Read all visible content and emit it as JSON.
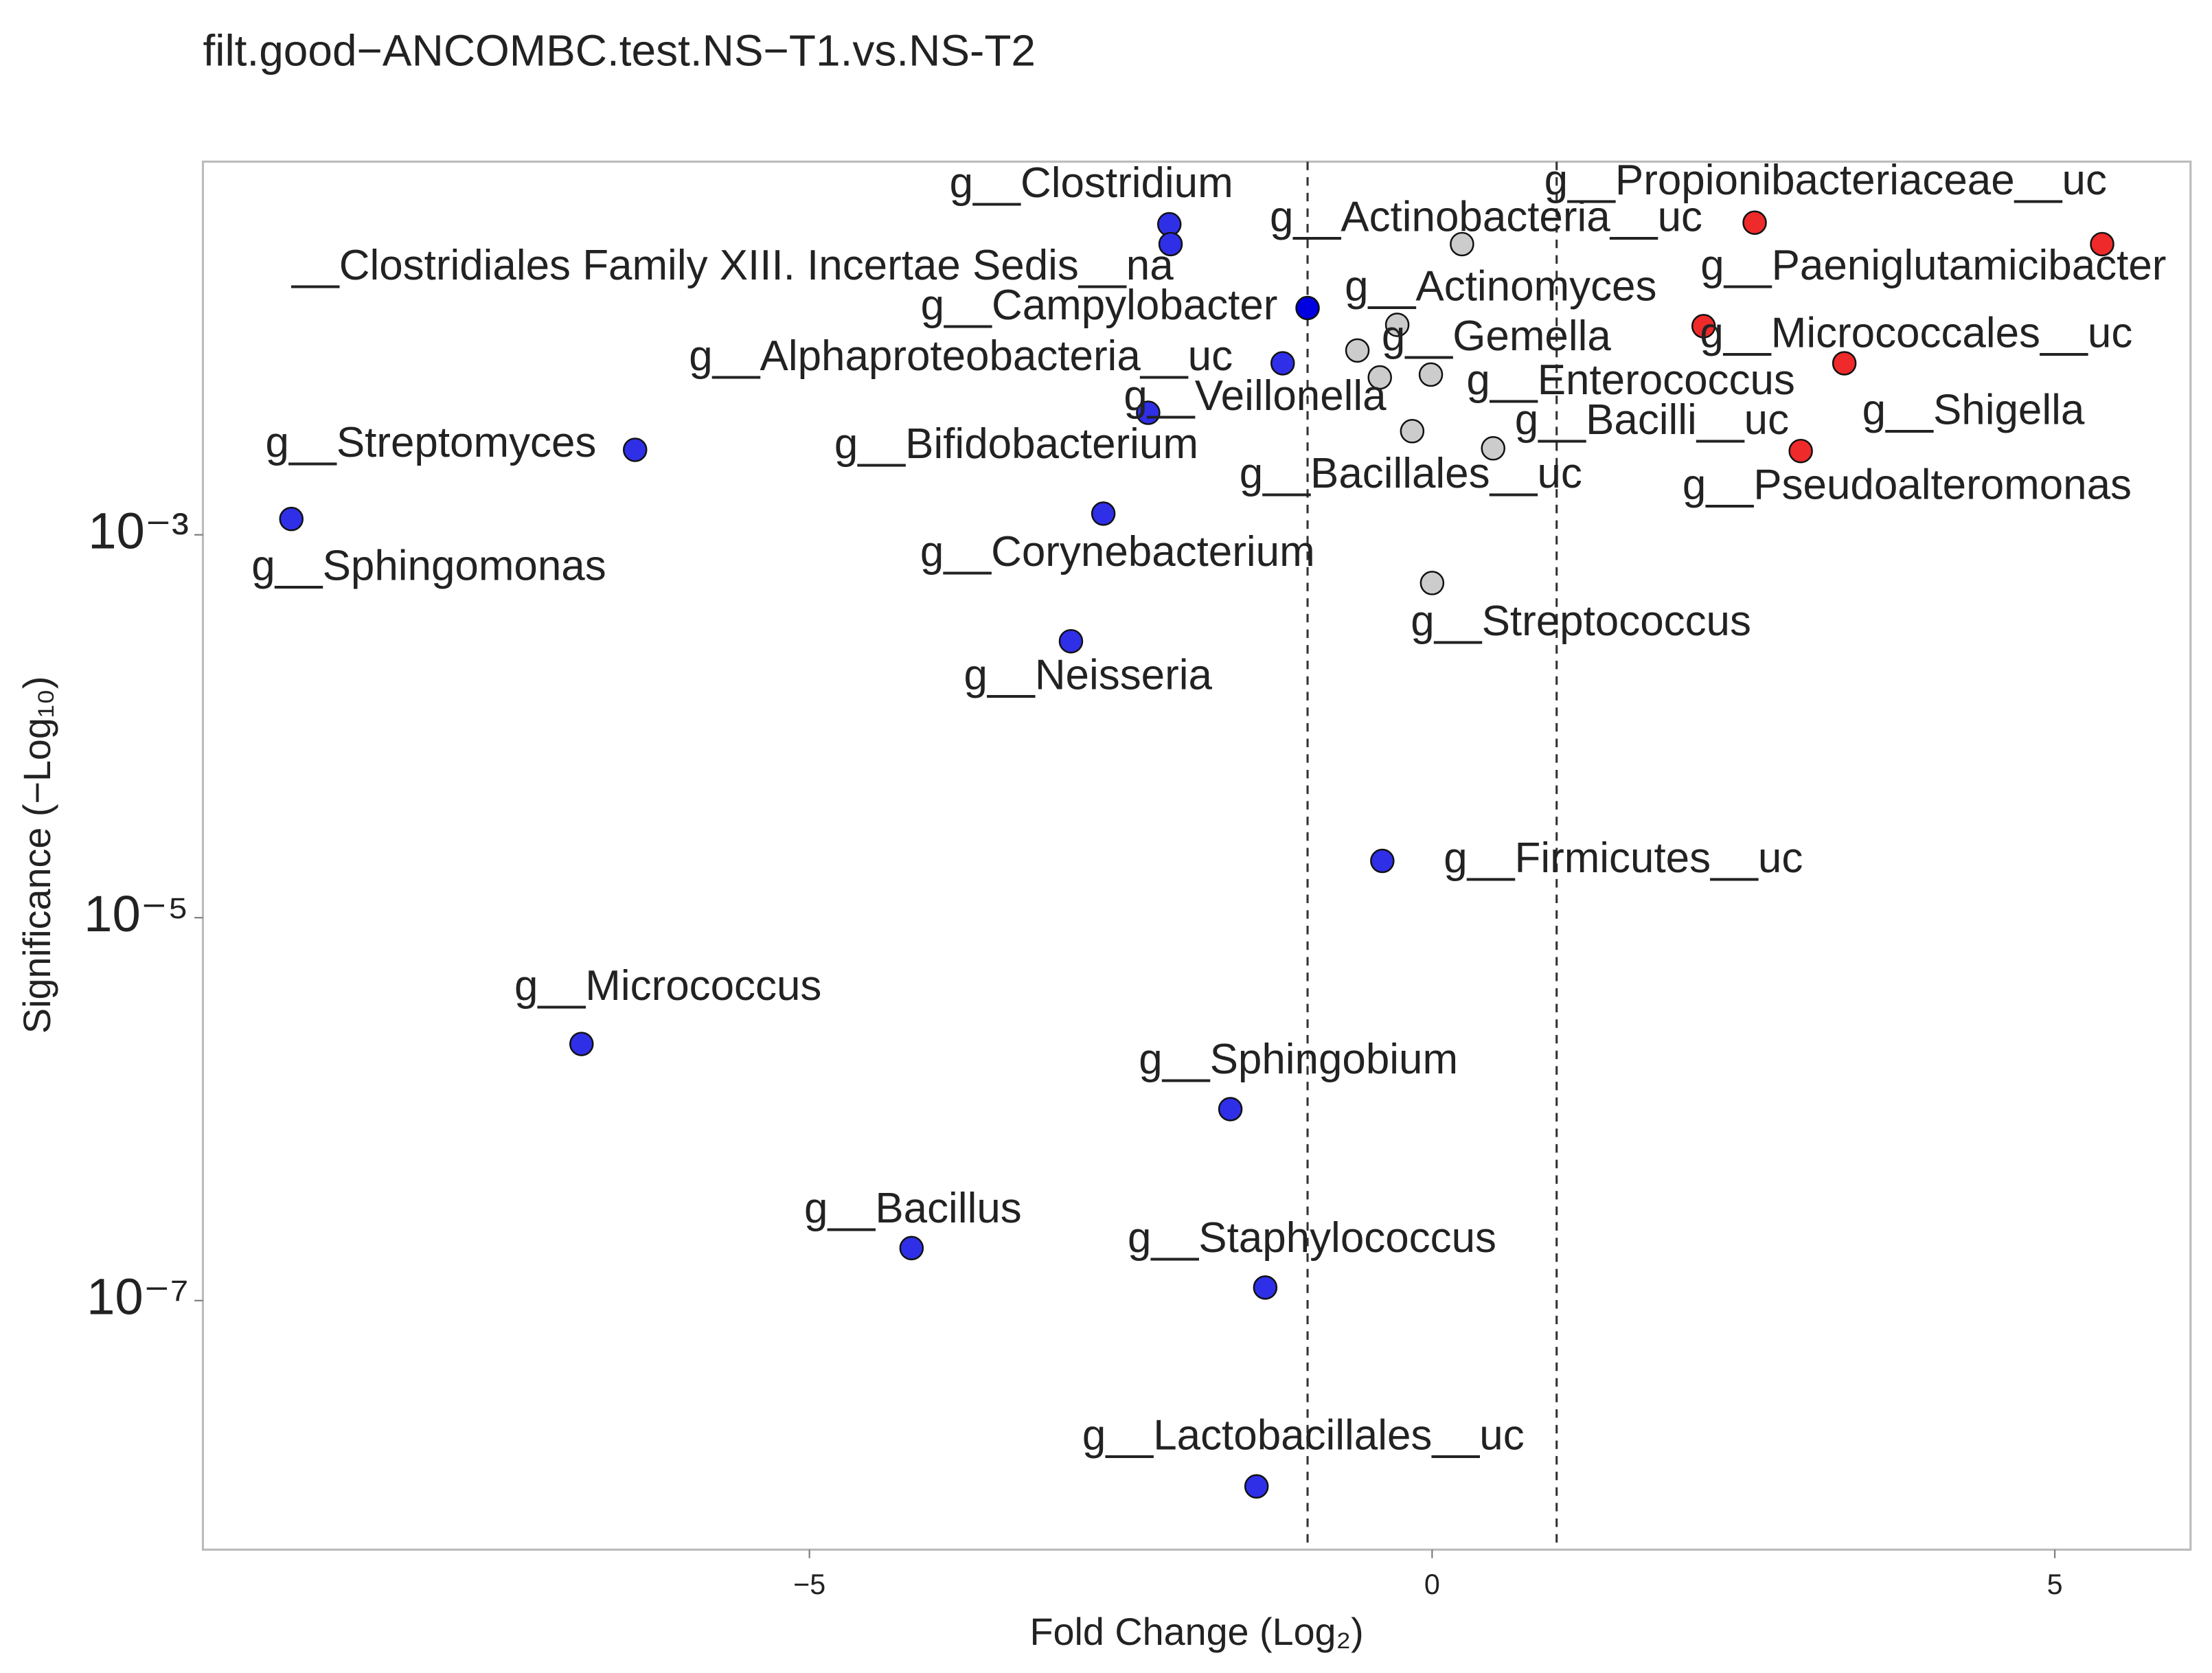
{
  "chart_data": {
    "type": "scatter",
    "title": "filt.good−ANCOMBC.test.NS−T1.vs.NS-T2",
    "x_label": "Fold Change (Log₂)",
    "y_label": "Significance (−Log₁₀)",
    "y_log": true,
    "xlim": [
      -9.87,
      6.09
    ],
    "ylim": [
      5e-09,
      0.089
    ],
    "xticks": [
      {
        "value": -5,
        "label": "−5"
      },
      0,
      5
    ],
    "yticks": [
      {
        "value": 0.001,
        "label": "10⁻³"
      },
      {
        "value": 1e-05,
        "label": "10⁻⁵"
      },
      {
        "value": 1e-07,
        "label": "10⁻⁷"
      }
    ],
    "vlines": [
      -1,
      1
    ],
    "labels": [
      "g__Clostridium",
      "__Clostridiales Family XIII. Incertae Sedis__na",
      "g__Campylobacter",
      "g__Alphaproteobacteria__uc",
      "g__Bifidobacterium",
      "g__Streptomyces",
      "g__Corynebacterium",
      "g__Sphingomonas",
      "g__Neisseria",
      "g__Firmicutes__uc",
      "g__Micrococcus",
      "g__Sphingobium",
      "g__Bacillus",
      "g__Staphylococcus",
      "g__Lactobacillales__uc",
      "g__Actinobacteria__uc",
      "g__Actinomyces",
      "g__Gemella",
      "g__Veillonella",
      "g__Enterococcus",
      "g__Bacillales__uc",
      "g__Bacilli__uc",
      "g__Streptococcus",
      "g__Propionibacteriaceae__uc",
      "g__Paeniglutamicibacter",
      "g__Micrococcales__uc",
      "g__Shigella",
      "g__Pseudoalteromonas"
    ],
    "x": [
      -2.11,
      -2.1,
      -1.0,
      -1.2,
      -2.28,
      -6.4,
      -2.64,
      -9.16,
      -2.9,
      -0.4,
      -6.83,
      -1.62,
      -4.18,
      -1.34,
      -1.41,
      0.24,
      -0.28,
      -0.6,
      -0.42,
      -0.01,
      -0.16,
      0.49,
      0.0,
      2.59,
      5.38,
      2.18,
      3.31,
      2.96
    ],
    "values": [
      0.0419,
      0.033,
      0.0153,
      0.00787,
      0.00434,
      0.00278,
      0.00129,
      0.00121,
      0.000278,
      1.98e-05,
      2.19e-06,
      1e-06,
      1.88e-07,
      1.17e-07,
      1.07e-08,
      0.033,
      0.0125,
      0.00918,
      0.00664,
      0.00687,
      0.00348,
      0.00283,
      0.00056,
      0.0427,
      0.033,
      0.0123,
      0.00787,
      0.00274
    ],
    "colors": [
      "#2f2fe8",
      "#2f2fe8",
      "#0000e0",
      "#2f2fe8",
      "#2f2fe8",
      "#2f2fe8",
      "#2f2fe8",
      "#2f2fe8",
      "#2f2fe8",
      "#2f2fe8",
      "#2f2fe8",
      "#2f2fe8",
      "#2f2fe8",
      "#2f2fe8",
      "#2f2fe8",
      "#cccccc",
      "#cccccc",
      "#cccccc",
      "#cccccc",
      "#cccccc",
      "#cccccc",
      "#cccccc",
      "#cccccc",
      "#ee2a2a",
      "#ee2a2a",
      "#ee2a2a",
      "#ee2a2a",
      "#ee2a2a"
    ]
  }
}
